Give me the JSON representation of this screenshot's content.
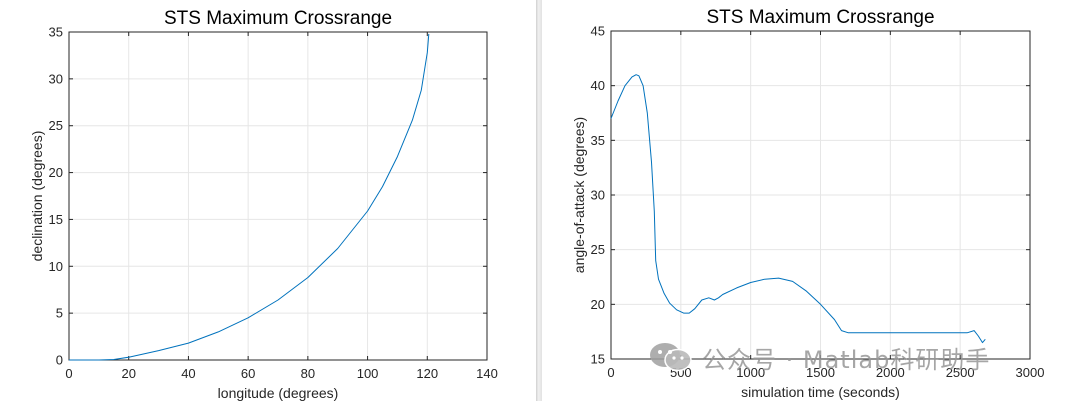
{
  "chart_data": [
    {
      "type": "line",
      "title": "STS Maximum Crossrange",
      "xlabel": "longitude (degrees)",
      "ylabel": "declination (degrees)",
      "xlim": [
        0,
        140
      ],
      "ylim": [
        0,
        35
      ],
      "xticks": [
        0,
        20,
        40,
        60,
        80,
        100,
        120,
        140
      ],
      "yticks": [
        0,
        5,
        10,
        15,
        20,
        25,
        30,
        35
      ],
      "grid": true,
      "series": [
        {
          "color": "#0072BD",
          "x": [
            0,
            10,
            15,
            20,
            30,
            40,
            50,
            60,
            70,
            80,
            90,
            100,
            105,
            110,
            115,
            118,
            120,
            120.5
          ],
          "y": [
            0,
            0,
            0.05,
            0.3,
            1.0,
            1.8,
            3.0,
            4.5,
            6.4,
            8.8,
            11.9,
            15.9,
            18.5,
            21.7,
            25.6,
            28.8,
            32.8,
            34.8
          ]
        }
      ]
    },
    {
      "type": "line",
      "title": "STS Maximum Crossrange",
      "xlabel": "simulation time (seconds)",
      "ylabel": "angle-of-attack (degrees)",
      "xlim": [
        0,
        3000
      ],
      "ylim": [
        15,
        45
      ],
      "xticks": [
        0,
        500,
        1000,
        1500,
        2000,
        2500,
        3000
      ],
      "yticks": [
        15,
        20,
        25,
        30,
        35,
        40,
        45
      ],
      "grid": true,
      "series": [
        {
          "color": "#0072BD",
          "x": [
            0,
            50,
            100,
            150,
            180,
            200,
            230,
            260,
            290,
            310,
            320,
            340,
            380,
            420,
            470,
            520,
            560,
            600,
            650,
            700,
            740,
            770,
            800,
            900,
            1000,
            1100,
            1200,
            1300,
            1400,
            1500,
            1600,
            1650,
            1700,
            1800,
            2000,
            2200,
            2400,
            2550,
            2600,
            2630,
            2660,
            2680
          ],
          "y": [
            37.0,
            38.6,
            40.0,
            40.8,
            41.0,
            40.9,
            40.0,
            37.5,
            33.0,
            28.5,
            24.0,
            22.3,
            21.0,
            20.1,
            19.5,
            19.2,
            19.2,
            19.6,
            20.4,
            20.6,
            20.4,
            20.6,
            20.9,
            21.5,
            22.0,
            22.3,
            22.4,
            22.1,
            21.2,
            20.0,
            18.6,
            17.6,
            17.4,
            17.4,
            17.4,
            17.4,
            17.4,
            17.4,
            17.6,
            17.1,
            16.5,
            16.8
          ]
        }
      ]
    }
  ],
  "watermark": {
    "text": "公众号 · Matlab科研助手",
    "icon": "wechat-icon"
  }
}
